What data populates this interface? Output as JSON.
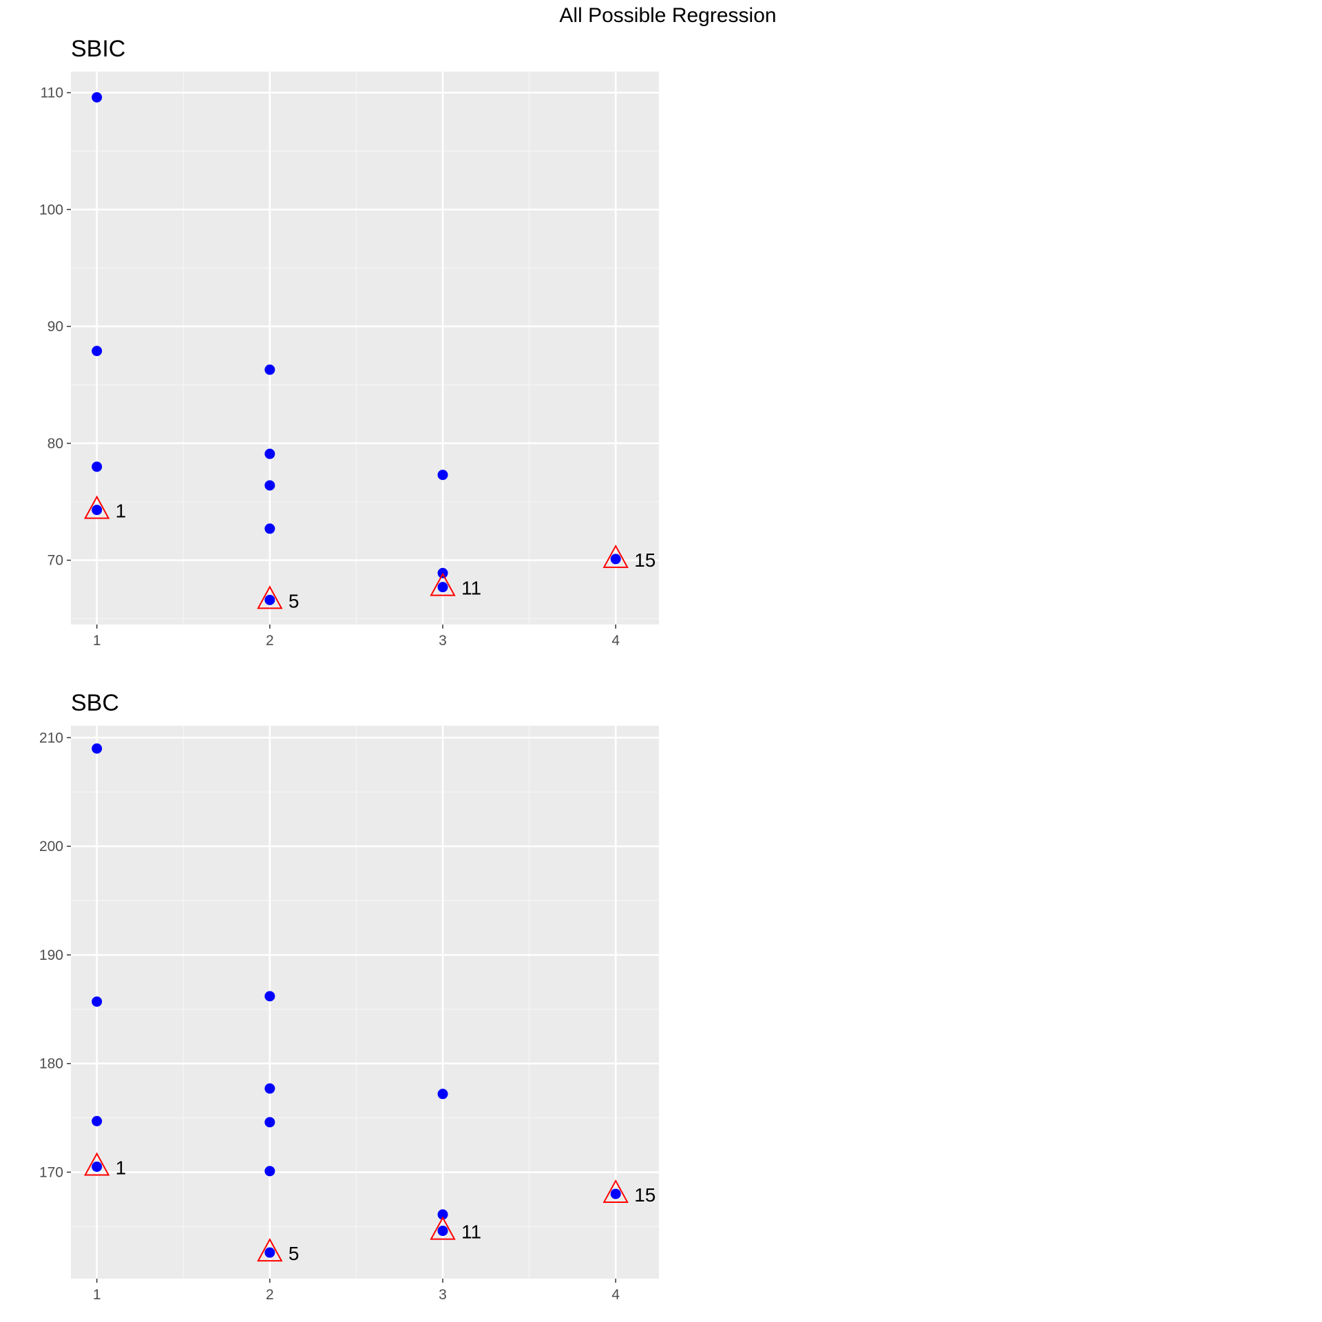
{
  "figure": {
    "title": "All Possible Regression"
  },
  "colors": {
    "panel_background": "#ebebeb",
    "grid_major": "#ffffff",
    "grid_minor": "#f5f5f5",
    "point": "#0000ff",
    "highlight": "#ff0000",
    "tick_text": "#4d4d4d",
    "axis_tick": "#333333"
  },
  "chart_data": [
    {
      "type": "scatter",
      "title": "SBIC",
      "xlabel": "",
      "ylabel": "",
      "xlim": [
        0.85,
        4.25
      ],
      "ylim": [
        64.5,
        111.8
      ],
      "x_ticks": [
        1,
        2,
        3,
        4
      ],
      "y_ticks": [
        70,
        80,
        90,
        100,
        110
      ],
      "grid": true,
      "legend": "none",
      "points": [
        {
          "x": 1,
          "y": 109.6
        },
        {
          "x": 1,
          "y": 87.9
        },
        {
          "x": 1,
          "y": 78.0
        },
        {
          "x": 1,
          "y": 74.3
        },
        {
          "x": 2,
          "y": 86.3
        },
        {
          "x": 2,
          "y": 79.1
        },
        {
          "x": 2,
          "y": 76.4
        },
        {
          "x": 2,
          "y": 72.7
        },
        {
          "x": 2,
          "y": 66.6
        },
        {
          "x": 3,
          "y": 77.3
        },
        {
          "x": 3,
          "y": 68.9
        },
        {
          "x": 3,
          "y": 67.7
        },
        {
          "x": 4,
          "y": 70.1
        }
      ],
      "highlights": [
        {
          "x": 1,
          "y": 74.3,
          "label": "1"
        },
        {
          "x": 2,
          "y": 66.6,
          "label": "5"
        },
        {
          "x": 3,
          "y": 67.7,
          "label": "11"
        },
        {
          "x": 4,
          "y": 70.1,
          "label": "15"
        }
      ]
    },
    {
      "type": "scatter",
      "title": "SBC",
      "xlabel": "",
      "ylabel": "",
      "xlim": [
        0.85,
        4.25
      ],
      "ylim": [
        160.2,
        211.1
      ],
      "x_ticks": [
        1,
        2,
        3,
        4
      ],
      "y_ticks": [
        170,
        180,
        190,
        200,
        210
      ],
      "grid": true,
      "legend": "none",
      "points": [
        {
          "x": 1,
          "y": 209.0
        },
        {
          "x": 1,
          "y": 185.7
        },
        {
          "x": 1,
          "y": 174.7
        },
        {
          "x": 1,
          "y": 170.5
        },
        {
          "x": 2,
          "y": 186.2
        },
        {
          "x": 2,
          "y": 177.7
        },
        {
          "x": 2,
          "y": 174.6
        },
        {
          "x": 2,
          "y": 170.1
        },
        {
          "x": 2,
          "y": 162.6
        },
        {
          "x": 3,
          "y": 177.2
        },
        {
          "x": 3,
          "y": 166.1
        },
        {
          "x": 3,
          "y": 164.6
        },
        {
          "x": 4,
          "y": 168.0
        }
      ],
      "highlights": [
        {
          "x": 1,
          "y": 170.5,
          "label": "1"
        },
        {
          "x": 2,
          "y": 162.6,
          "label": "5"
        },
        {
          "x": 3,
          "y": 164.6,
          "label": "11"
        },
        {
          "x": 4,
          "y": 168.0,
          "label": "15"
        }
      ]
    }
  ]
}
